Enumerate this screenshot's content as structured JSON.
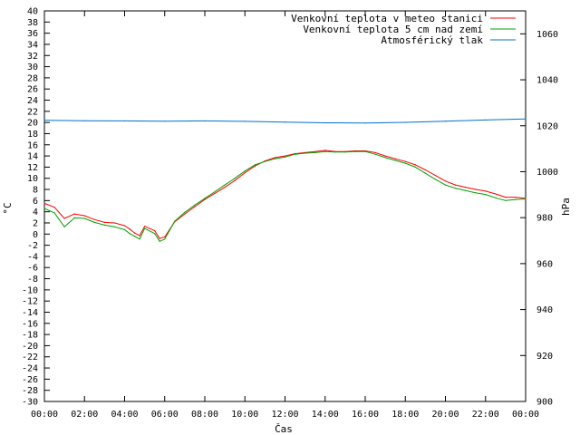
{
  "chart_data": {
    "type": "line",
    "xlabel": "Čas",
    "ylabel_left": "°C",
    "ylabel_right": "hPa",
    "xlim": [
      "00:00",
      "24:00"
    ],
    "ylim_left": [
      -30,
      40
    ],
    "ylim_right": [
      900,
      1070
    ],
    "x_tick_labels": [
      "00:00",
      "02:00",
      "04:00",
      "06:00",
      "08:00",
      "10:00",
      "12:00",
      "14:00",
      "16:00",
      "18:00",
      "20:00",
      "22:00",
      "00:00"
    ],
    "y_left_ticks": [
      40,
      38,
      36,
      34,
      32,
      30,
      28,
      26,
      24,
      22,
      20,
      18,
      16,
      14,
      12,
      10,
      8,
      6,
      4,
      2,
      0,
      -2,
      -4,
      -6,
      -8,
      -10,
      -12,
      -14,
      -16,
      -18,
      -20,
      -22,
      -24,
      -26,
      -28,
      -30
    ],
    "y_right_ticks": [
      1060,
      1040,
      1020,
      1000,
      980,
      960,
      940,
      920,
      900
    ],
    "grid": false,
    "legend_position": "top-right",
    "series": [
      {
        "name": "Venkovní teplota v meteo stanici",
        "axis": "left",
        "color": "#ff0000",
        "x": [
          "00:00",
          "00:30",
          "01:00",
          "01:30",
          "02:00",
          "02:30",
          "03:00",
          "03:30",
          "04:00",
          "04:15",
          "04:30",
          "04:45",
          "05:00",
          "05:30",
          "05:45",
          "06:00",
          "06:30",
          "07:00",
          "07:30",
          "08:00",
          "08:30",
          "09:00",
          "09:30",
          "10:00",
          "10:30",
          "11:00",
          "11:30",
          "12:00",
          "12:30",
          "13:00",
          "13:30",
          "14:00",
          "14:30",
          "15:00",
          "15:30",
          "16:00",
          "16:30",
          "17:00",
          "17:30",
          "18:00",
          "18:30",
          "19:00",
          "19:30",
          "20:00",
          "20:30",
          "21:00",
          "21:30",
          "22:00",
          "22:30",
          "23:00",
          "23:30",
          "24:00"
        ],
        "values": [
          5.5,
          4.8,
          2.8,
          3.6,
          3.3,
          2.6,
          2.1,
          2.0,
          1.5,
          0.9,
          0.2,
          -0.3,
          1.4,
          0.6,
          -0.8,
          -0.5,
          2.2,
          3.6,
          4.9,
          6.2,
          7.3,
          8.4,
          9.6,
          11.0,
          12.2,
          13.1,
          13.7,
          14.0,
          14.4,
          14.6,
          14.8,
          15.0,
          14.8,
          14.8,
          14.9,
          14.9,
          14.6,
          14.0,
          13.5,
          13.0,
          12.4,
          11.5,
          10.5,
          9.5,
          8.8,
          8.4,
          8.0,
          7.7,
          7.2,
          6.6,
          6.6,
          6.4
        ]
      },
      {
        "name": "Venkovní teplota 5 cm nad zemí",
        "axis": "left",
        "color": "#00a000",
        "x": [
          "00:00",
          "00:30",
          "01:00",
          "01:30",
          "02:00",
          "02:30",
          "03:00",
          "03:30",
          "04:00",
          "04:15",
          "04:30",
          "04:45",
          "05:00",
          "05:30",
          "05:45",
          "06:00",
          "06:30",
          "07:00",
          "07:30",
          "08:00",
          "08:30",
          "09:00",
          "09:30",
          "10:00",
          "10:30",
          "11:00",
          "11:30",
          "12:00",
          "12:30",
          "13:00",
          "13:30",
          "14:00",
          "14:30",
          "15:00",
          "15:30",
          "16:00",
          "16:30",
          "17:00",
          "17:30",
          "18:00",
          "18:30",
          "19:00",
          "19:30",
          "20:00",
          "20:30",
          "21:00",
          "21:30",
          "22:00",
          "22:30",
          "23:00",
          "23:30",
          "24:00"
        ],
        "values": [
          4.6,
          3.8,
          1.3,
          2.9,
          2.8,
          2.1,
          1.6,
          1.3,
          0.8,
          0.1,
          -0.4,
          -0.9,
          1.0,
          0.1,
          -1.3,
          -0.9,
          2.3,
          3.9,
          5.2,
          6.4,
          7.6,
          8.8,
          10.0,
          11.3,
          12.4,
          13.0,
          13.5,
          13.8,
          14.3,
          14.5,
          14.6,
          14.8,
          14.7,
          14.7,
          14.8,
          14.8,
          14.3,
          13.7,
          13.2,
          12.7,
          12.0,
          10.9,
          9.8,
          8.8,
          8.2,
          7.8,
          7.4,
          7.1,
          6.5,
          6.0,
          6.2,
          6.3
        ]
      },
      {
        "name": "Atmosférický tlak",
        "axis": "right",
        "color": "#0070d0",
        "x": [
          "00:00",
          "02:00",
          "04:00",
          "06:00",
          "08:00",
          "10:00",
          "12:00",
          "14:00",
          "16:00",
          "18:00",
          "20:00",
          "22:00",
          "24:00"
        ],
        "values": [
          1022.4,
          1022.2,
          1022.1,
          1022.0,
          1022.1,
          1021.9,
          1021.6,
          1021.3,
          1021.2,
          1021.5,
          1022.0,
          1022.5,
          1023.0
        ]
      }
    ]
  }
}
